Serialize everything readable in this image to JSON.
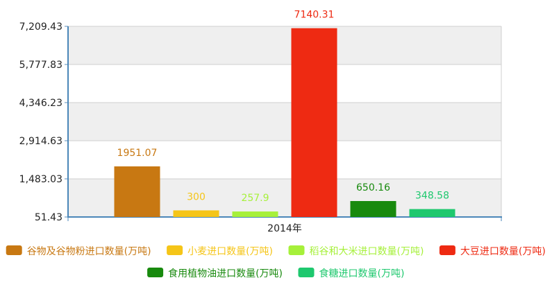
{
  "chart_data": {
    "type": "bar",
    "categories": [
      "2014年"
    ],
    "series": [
      {
        "name": "谷物及谷物粉进口数量(万吨)",
        "values": [
          1951.07
        ],
        "color": "#c87812",
        "label": "1951.07"
      },
      {
        "name": "小麦进口数量(万吨)",
        "values": [
          300
        ],
        "color": "#f5c518",
        "label": "300"
      },
      {
        "name": "稻谷和大米进口数量(万吨)",
        "values": [
          257.9
        ],
        "color": "#a6f03a",
        "label": "257.9"
      },
      {
        "name": "大豆进口数量(万吨)",
        "values": [
          7140.31
        ],
        "color": "#ee2a12",
        "label": "7140.31"
      },
      {
        "name": "食用植物油进口数量(万吨)",
        "values": [
          650.16
        ],
        "color": "#188a0e",
        "label": "650.16"
      },
      {
        "name": "食糖进口数量(万吨)",
        "values": [
          348.58
        ],
        "color": "#1ec86e",
        "label": "348.58"
      }
    ],
    "yticks": [
      "51.43",
      "1,483.03",
      "2,914.63",
      "4,346.23",
      "5,777.83",
      "7,209.43"
    ],
    "ylim": [
      51.43,
      7209.43
    ],
    "grid": true,
    "legend_position": "bottom",
    "background_bands": [
      "#efefef",
      "#ffffff"
    ]
  }
}
